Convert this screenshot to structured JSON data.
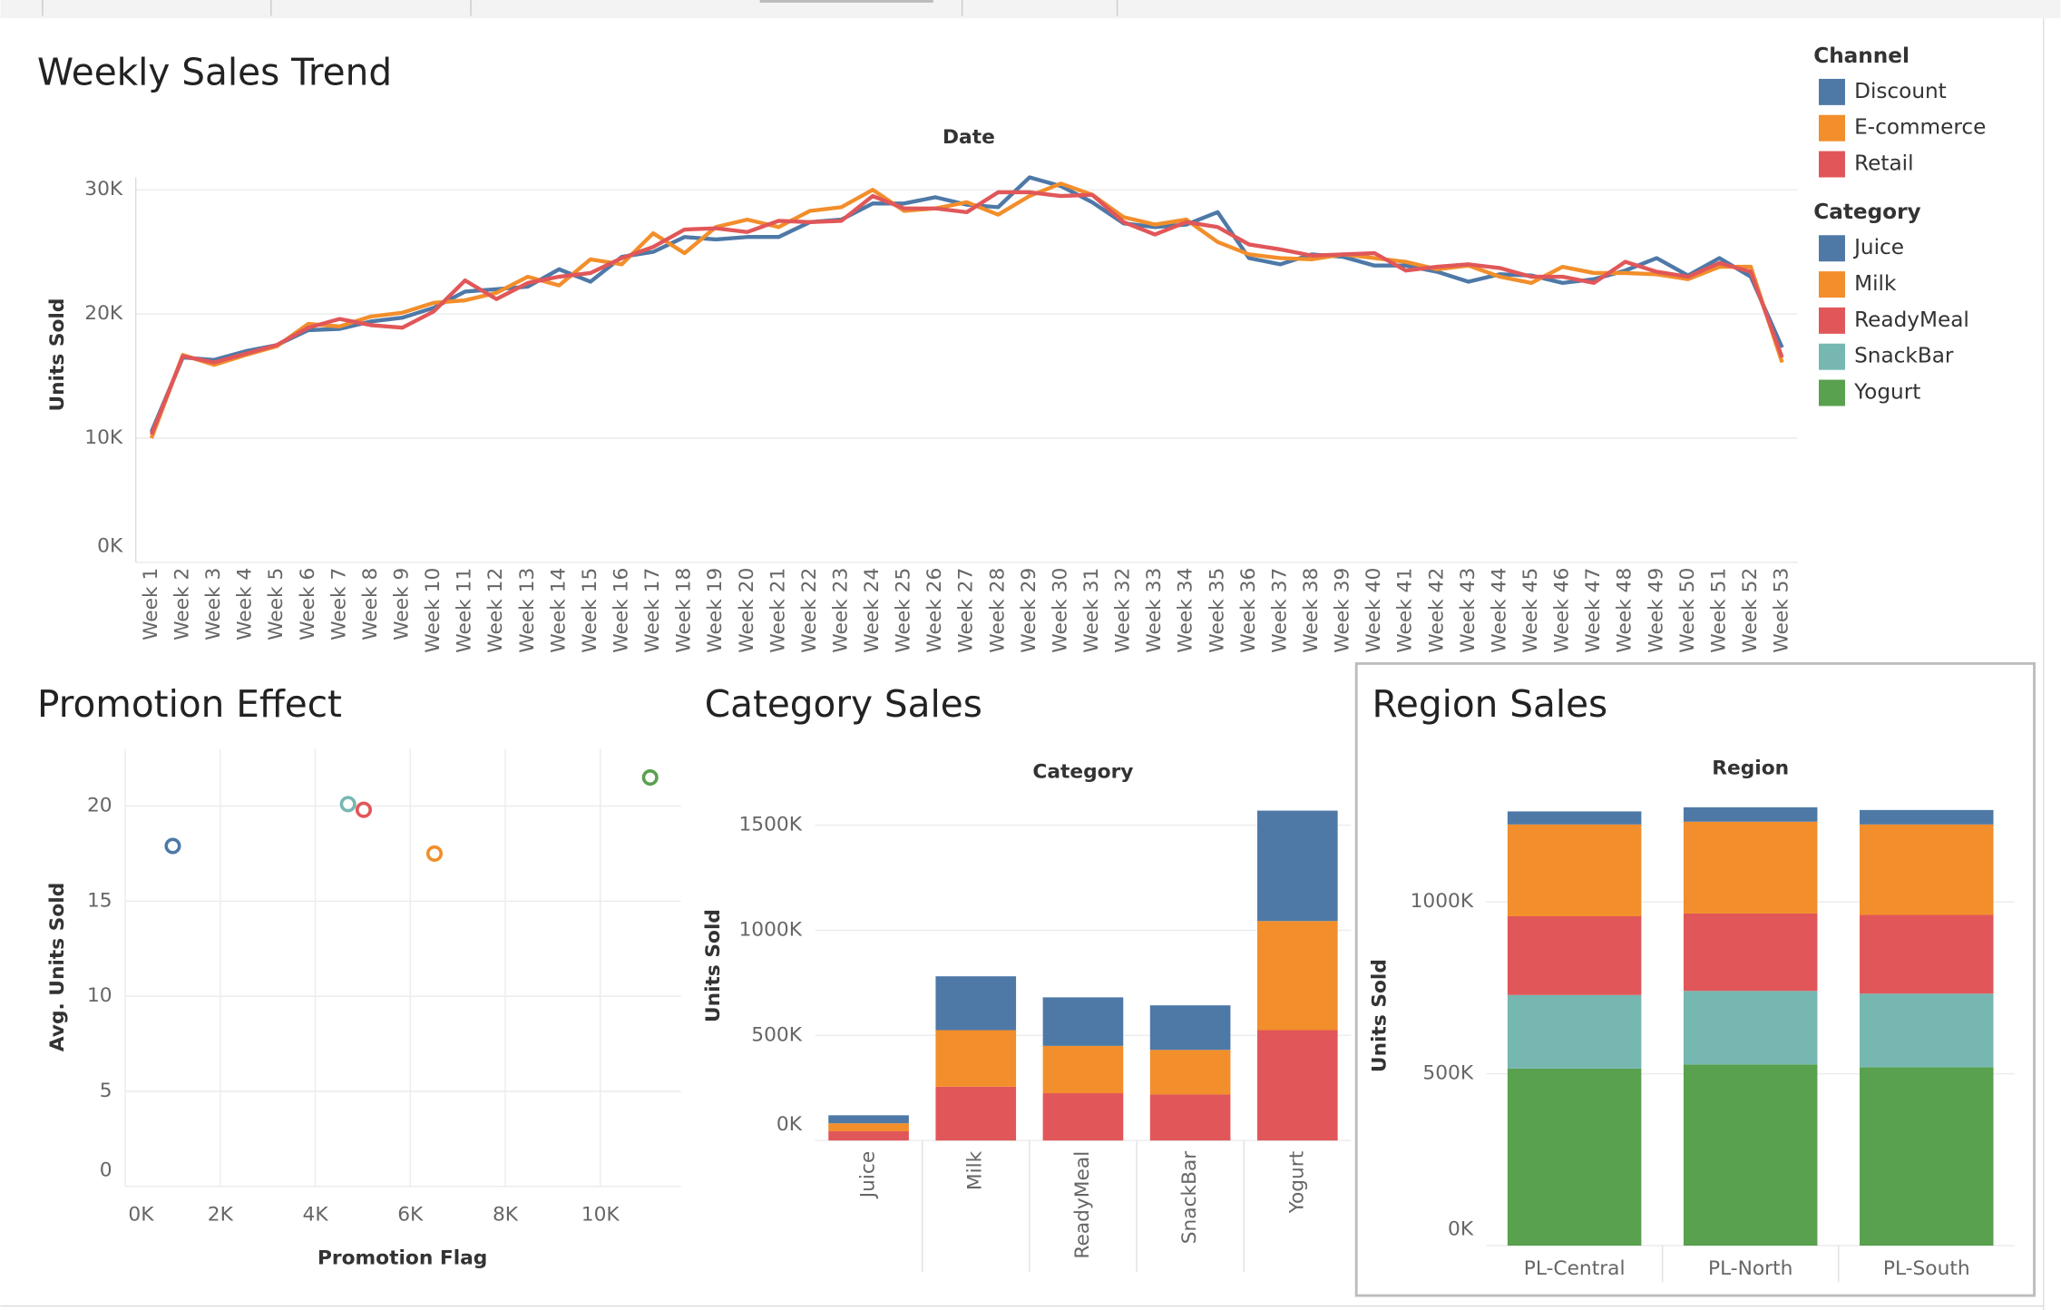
{
  "chart_data": [
    {
      "type": "line",
      "title": "Weekly Sales Trend",
      "header": "Date",
      "y_label": "Units Sold",
      "legend_title": "Channel",
      "grid": true,
      "categories": [
        "Week 1",
        "Week 2",
        "Week 3",
        "Week 4",
        "Week 5",
        "Week 6",
        "Week 7",
        "Week 8",
        "Week 9",
        "Week 10",
        "Week 11",
        "Week 12",
        "Week 13",
        "Week 14",
        "Week 15",
        "Week 16",
        "Week 17",
        "Week 18",
        "Week 19",
        "Week 20",
        "Week 21",
        "Week 22",
        "Week 23",
        "Week 24",
        "Week 25",
        "Week 26",
        "Week 27",
        "Week 28",
        "Week 29",
        "Week 30",
        "Week 31",
        "Week 32",
        "Week 33",
        "Week 34",
        "Week 35",
        "Week 36",
        "Week 37",
        "Week 38",
        "Week 39",
        "Week 40",
        "Week 41",
        "Week 42",
        "Week 43",
        "Week 44",
        "Week 45",
        "Week 46",
        "Week 47",
        "Week 48",
        "Week 49",
        "Week 50",
        "Week 51",
        "Week 52",
        "Week 53"
      ],
      "ylim": [
        0,
        31000
      ],
      "yticks": [
        {
          "value": 0,
          "label": "0K"
        },
        {
          "value": 10000,
          "label": "10K"
        },
        {
          "value": 20000,
          "label": "20K"
        },
        {
          "value": 30000,
          "label": "30K"
        }
      ],
      "series": [
        {
          "name": "Discount",
          "color": "#4e79a7",
          "values": [
            10500,
            16500,
            16300,
            17000,
            17500,
            18700,
            18800,
            19400,
            19700,
            20500,
            21800,
            22000,
            22200,
            23600,
            22600,
            24600,
            25000,
            26200,
            26000,
            26200,
            26200,
            27400,
            27600,
            28900,
            28900,
            29400,
            28800,
            28600,
            31000,
            30300,
            29000,
            27300,
            27000,
            27200,
            28200,
            24500,
            24000,
            24800,
            24600,
            23900,
            23900,
            23400,
            22600,
            23200,
            23100,
            22500,
            22800,
            23500,
            24500,
            23100,
            24500,
            23000,
            17300
          ]
        },
        {
          "name": "E-commerce",
          "color": "#f28e2b",
          "values": [
            10000,
            16700,
            15900,
            16700,
            17400,
            19200,
            19000,
            19800,
            20100,
            20900,
            21100,
            21700,
            23000,
            22300,
            24400,
            24000,
            26500,
            24900,
            27000,
            27600,
            27000,
            28300,
            28600,
            30000,
            28300,
            28500,
            29000,
            28000,
            29500,
            30500,
            29600,
            27800,
            27200,
            27600,
            25800,
            24800,
            24500,
            24400,
            24800,
            24500,
            24200,
            23600,
            23900,
            23000,
            22500,
            23800,
            23300,
            23300,
            23200,
            22800,
            23800,
            23800,
            16100
          ]
        },
        {
          "name": "Retail",
          "color": "#e15759",
          "values": [
            10300,
            16600,
            16100,
            16800,
            17500,
            18900,
            19600,
            19100,
            18900,
            20200,
            22700,
            21200,
            22500,
            23000,
            23300,
            24500,
            25400,
            26800,
            26900,
            26600,
            27500,
            27400,
            27500,
            29500,
            28500,
            28500,
            28200,
            29800,
            29800,
            29500,
            29600,
            27400,
            26400,
            27400,
            27000,
            25600,
            25200,
            24700,
            24800,
            24900,
            23500,
            23800,
            24000,
            23700,
            23000,
            23000,
            22500,
            24200,
            23400,
            23000,
            24100,
            23400,
            16500
          ]
        }
      ]
    },
    {
      "type": "scatter",
      "title": "Promotion Effect",
      "x_label": "Promotion Flag",
      "y_label": "Avg. Units Sold",
      "grid": true,
      "x": [
        1000,
        4690,
        5020,
        6510,
        11050
      ],
      "y": [
        17.9,
        20.1,
        19.8,
        17.5,
        21.5
      ],
      "colors": [
        "#4e79a7",
        "#76b7b2",
        "#e15759",
        "#f28e2b",
        "#59a14f"
      ],
      "xlim": [
        0,
        11700
      ],
      "xticks": [
        {
          "value": 0,
          "label": "0K"
        },
        {
          "value": 2000,
          "label": "2K"
        },
        {
          "value": 4000,
          "label": "4K"
        },
        {
          "value": 6000,
          "label": "6K"
        },
        {
          "value": 8000,
          "label": "8K"
        },
        {
          "value": 10000,
          "label": "10K"
        }
      ],
      "ylim": [
        0,
        23
      ],
      "yticks": [
        0,
        5,
        10,
        15,
        20
      ]
    },
    {
      "type": "stacked_bar",
      "title": "Category Sales",
      "header": "Category",
      "y_label": "Units Sold",
      "grid": true,
      "categories": [
        "Juice",
        "Milk",
        "ReadyMeal",
        "SnackBar",
        "Yogurt"
      ],
      "ylim": [
        0,
        1625000
      ],
      "yticks": [
        {
          "value": 0,
          "label": "0K"
        },
        {
          "value": 500000,
          "label": "500K"
        },
        {
          "value": 1000000,
          "label": "1000K"
        },
        {
          "value": 1500000,
          "label": "1500K"
        }
      ],
      "series": [
        {
          "color": "#4e79a7",
          "values": [
            38000,
            256000,
            231000,
            212000,
            525000
          ]
        },
        {
          "color": "#f28e2b",
          "values": [
            38000,
            269000,
            225000,
            212000,
            519000
          ]
        },
        {
          "color": "#e15759",
          "values": [
            44000,
            256000,
            225000,
            219000,
            525000
          ]
        }
      ]
    },
    {
      "type": "stacked_bar",
      "title": "Region Sales",
      "header": "Region",
      "y_label": "Units Sold",
      "grid": true,
      "legend_title": "Category",
      "categories": [
        "PL-Central",
        "PL-North",
        "PL-South"
      ],
      "ylim": [
        0,
        1330000
      ],
      "yticks": [
        {
          "value": 0,
          "label": "0K"
        },
        {
          "value": 500000,
          "label": "500K"
        },
        {
          "value": 1000000,
          "label": "1000K"
        }
      ],
      "series": [
        {
          "name": "Juice",
          "color": "#4e79a7",
          "values": [
            38000,
            42000,
            42000
          ]
        },
        {
          "name": "Milk",
          "color": "#f28e2b",
          "values": [
            267000,
            267000,
            263000
          ]
        },
        {
          "name": "ReadyMeal",
          "color": "#e15759",
          "values": [
            229000,
            225000,
            229000
          ]
        },
        {
          "name": "SnackBar",
          "color": "#76b7b2",
          "values": [
            214000,
            214000,
            214000
          ]
        },
        {
          "name": "Yogurt",
          "color": "#59a14f",
          "values": [
            515000,
            527000,
            519000
          ]
        }
      ]
    }
  ]
}
